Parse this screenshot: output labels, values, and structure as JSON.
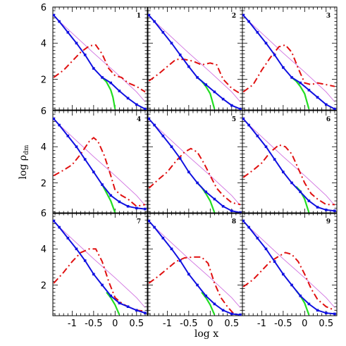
{
  "chart_data": {
    "type": "line",
    "xlabel": "log x",
    "ylabel_main": "log ρ",
    "ylabel_sub": "dm",
    "xlim": [
      -1.45,
      0.75
    ],
    "ylim": [
      0.3,
      6.0
    ],
    "x_ticks": [
      "-1",
      "-0.5",
      "0",
      "0.5"
    ],
    "x_tick_values": [
      -1,
      -0.5,
      0,
      0.5
    ],
    "y_ticks": [
      "6",
      "4",
      "2"
    ],
    "y_tick_values": [
      6,
      4,
      2
    ],
    "grid": false,
    "layout": "3x3",
    "colors": {
      "blue": "#1010e0",
      "green": "#22dd22",
      "red": "#e01010",
      "magenta": "#d070e0",
      "frame": "#000000"
    },
    "panels": [
      {
        "label": "1",
        "series": [
          {
            "style": "blue-dotted-solid",
            "x": [
              -1.43,
              -1.3,
              -1.1,
              -0.9,
              -0.7,
              -0.5,
              -0.3,
              -0.1,
              0.1,
              0.3,
              0.5,
              0.7
            ],
            "y": [
              5.55,
              5.2,
              4.6,
              4.0,
              3.35,
              2.6,
              2.1,
              1.8,
              1.35,
              0.95,
              0.6,
              0.35
            ]
          },
          {
            "style": "green-solid",
            "x": [
              -0.3,
              -0.2,
              -0.1,
              -0.05,
              0.0
            ],
            "y": [
              2.1,
              1.85,
              1.4,
              1.0,
              0.35
            ]
          },
          {
            "style": "red-dashed",
            "x": [
              -1.43,
              -1.2,
              -1.0,
              -0.8,
              -0.6,
              -0.45,
              -0.3,
              -0.15,
              0.0,
              0.15,
              0.3,
              0.5,
              0.7
            ],
            "y": [
              2.1,
              2.5,
              3.0,
              3.5,
              3.85,
              3.9,
              3.4,
              2.6,
              2.2,
              2.1,
              1.8,
              1.6,
              1.3
            ]
          },
          {
            "style": "magenta-thin",
            "x": [
              -1.43,
              -1.0,
              -0.5,
              0.0,
              0.5,
              0.7
            ],
            "y": [
              5.5,
              4.55,
              3.45,
              2.4,
              1.3,
              0.75
            ]
          }
        ]
      },
      {
        "label": "2",
        "series": [
          {
            "style": "blue-dotted-solid",
            "x": [
              -1.43,
              -1.3,
              -1.1,
              -0.9,
              -0.7,
              -0.5,
              -0.3,
              -0.1,
              0.1,
              0.3,
              0.5,
              0.7
            ],
            "y": [
              5.55,
              5.2,
              4.6,
              4.0,
              3.35,
              2.7,
              2.1,
              1.7,
              1.3,
              0.9,
              0.55,
              0.35
            ]
          },
          {
            "style": "green-solid",
            "x": [
              -0.3,
              -0.2,
              -0.1,
              0.0,
              0.1
            ],
            "y": [
              2.1,
              1.9,
              1.6,
              1.2,
              0.35
            ]
          },
          {
            "style": "red-dashed",
            "x": [
              -1.43,
              -1.2,
              -1.0,
              -0.8,
              -0.6,
              -0.4,
              -0.2,
              0.0,
              0.15,
              0.3,
              0.5,
              0.7
            ],
            "y": [
              1.9,
              2.3,
              2.7,
              3.1,
              3.1,
              3.0,
              2.8,
              2.9,
              2.8,
              2.0,
              1.5,
              1.2
            ]
          },
          {
            "style": "magenta-thin",
            "x": [
              -1.43,
              -1.0,
              -0.5,
              0.0,
              0.5,
              0.7
            ],
            "y": [
              5.5,
              4.55,
              3.45,
              2.4,
              1.3,
              0.75
            ]
          }
        ]
      },
      {
        "label": "3",
        "series": [
          {
            "style": "blue-dotted-solid",
            "x": [
              -1.43,
              -1.3,
              -1.1,
              -0.9,
              -0.7,
              -0.5,
              -0.3,
              -0.1,
              0.1,
              0.3,
              0.5,
              0.7
            ],
            "y": [
              5.55,
              5.2,
              4.6,
              4.0,
              3.35,
              2.65,
              2.1,
              1.8,
              1.4,
              1.0,
              0.6,
              0.35
            ]
          },
          {
            "style": "green-solid",
            "x": [
              -0.3,
              -0.2,
              -0.1,
              0.0,
              0.1
            ],
            "y": [
              2.1,
              1.9,
              1.6,
              1.2,
              0.35
            ]
          },
          {
            "style": "red-dashed",
            "x": [
              -1.43,
              -1.2,
              -1.0,
              -0.8,
              -0.6,
              -0.45,
              -0.3,
              -0.15,
              0.0,
              0.15,
              0.3,
              0.5,
              0.7
            ],
            "y": [
              1.3,
              1.7,
              2.5,
              3.2,
              3.8,
              3.9,
              3.5,
              2.6,
              1.8,
              1.7,
              1.8,
              1.7,
              1.6
            ]
          },
          {
            "style": "magenta-thin",
            "x": [
              -1.43,
              -1.0,
              -0.5,
              0.0,
              0.5,
              0.7
            ],
            "y": [
              5.5,
              4.55,
              3.45,
              2.4,
              1.3,
              0.75
            ]
          }
        ]
      },
      {
        "label": "4",
        "series": [
          {
            "style": "blue-dotted-solid",
            "x": [
              -1.43,
              -1.3,
              -1.1,
              -0.9,
              -0.7,
              -0.5,
              -0.3,
              -0.1,
              0.1,
              0.3,
              0.5,
              0.7
            ],
            "y": [
              5.55,
              5.2,
              4.6,
              4.0,
              3.3,
              2.6,
              1.9,
              1.3,
              0.95,
              0.7,
              0.6,
              0.55
            ]
          },
          {
            "style": "green-solid",
            "x": [
              -0.3,
              -0.2,
              -0.1,
              0.0
            ],
            "y": [
              1.9,
              1.45,
              1.0,
              0.35
            ]
          },
          {
            "style": "red-dashed",
            "x": [
              -1.43,
              -1.2,
              -1.0,
              -0.8,
              -0.6,
              -0.5,
              -0.4,
              -0.25,
              -0.1,
              0.0,
              0.15,
              0.3,
              0.5,
              0.7
            ],
            "y": [
              2.4,
              2.7,
              3.0,
              3.6,
              4.3,
              4.5,
              4.3,
              3.5,
              2.4,
              1.6,
              1.3,
              1.1,
              0.7,
              0.8
            ]
          },
          {
            "style": "magenta-thin",
            "x": [
              -1.43,
              -1.0,
              -0.5,
              0.0,
              0.5,
              0.7
            ],
            "y": [
              5.5,
              4.55,
              3.45,
              2.4,
              1.3,
              0.75
            ]
          }
        ]
      },
      {
        "label": "5",
        "series": [
          {
            "style": "blue-dotted-solid",
            "x": [
              -1.43,
              -1.3,
              -1.1,
              -0.9,
              -0.7,
              -0.5,
              -0.3,
              -0.1,
              0.1,
              0.3,
              0.5,
              0.7
            ],
            "y": [
              5.55,
              5.2,
              4.6,
              4.0,
              3.35,
              2.6,
              2.0,
              1.5,
              1.1,
              0.7,
              0.45,
              0.35
            ]
          },
          {
            "style": "green-solid",
            "x": [
              -0.3,
              -0.2,
              -0.1,
              0.0,
              0.1
            ],
            "y": [
              2.0,
              1.75,
              1.4,
              1.0,
              0.35
            ]
          },
          {
            "style": "red-dashed",
            "x": [
              -1.43,
              -1.2,
              -1.0,
              -0.8,
              -0.6,
              -0.45,
              -0.3,
              -0.15,
              0.0,
              0.15,
              0.3,
              0.5,
              0.7
            ],
            "y": [
              1.7,
              2.2,
              2.6,
              3.2,
              3.7,
              3.9,
              3.7,
              3.1,
              2.4,
              1.7,
              1.3,
              0.9,
              0.8
            ]
          },
          {
            "style": "magenta-thin",
            "x": [
              -1.43,
              -1.0,
              -0.5,
              0.0,
              0.5,
              0.7
            ],
            "y": [
              5.5,
              4.55,
              3.45,
              2.4,
              1.3,
              0.75
            ]
          }
        ]
      },
      {
        "label": "6",
        "series": [
          {
            "style": "blue-dotted-solid",
            "x": [
              -1.43,
              -1.3,
              -1.1,
              -0.9,
              -0.7,
              -0.5,
              -0.3,
              -0.1,
              0.1,
              0.3,
              0.5,
              0.7
            ],
            "y": [
              5.55,
              5.2,
              4.6,
              4.0,
              3.3,
              2.6,
              2.0,
              1.5,
              1.0,
              0.65,
              0.5,
              0.45
            ]
          },
          {
            "style": "green-solid",
            "x": [
              -0.2,
              -0.1,
              0.0,
              0.1
            ],
            "y": [
              1.8,
              1.55,
              1.1,
              0.35
            ]
          },
          {
            "style": "red-dashed",
            "x": [
              -1.43,
              -1.2,
              -1.0,
              -0.8,
              -0.6,
              -0.45,
              -0.3,
              -0.15,
              0.0,
              0.15,
              0.3,
              0.5,
              0.7
            ],
            "y": [
              2.3,
              2.7,
              3.1,
              3.7,
              4.1,
              4.0,
              3.6,
              2.8,
              2.0,
              1.4,
              1.1,
              0.8,
              0.8
            ]
          },
          {
            "style": "magenta-thin",
            "x": [
              -1.43,
              -1.0,
              -0.5,
              0.0,
              0.5,
              0.7
            ],
            "y": [
              5.5,
              4.55,
              3.45,
              2.4,
              1.3,
              0.75
            ]
          }
        ]
      },
      {
        "label": "7",
        "series": [
          {
            "style": "blue-dotted-solid",
            "x": [
              -1.43,
              -1.3,
              -1.1,
              -0.9,
              -0.7,
              -0.5,
              -0.3,
              -0.1,
              0.1,
              0.3,
              0.5,
              0.7
            ],
            "y": [
              5.55,
              5.2,
              4.6,
              4.0,
              3.35,
              2.6,
              2.0,
              1.4,
              1.0,
              0.8,
              0.6,
              0.45
            ]
          },
          {
            "style": "green-solid",
            "x": [
              -0.2,
              -0.1,
              0.0,
              0.1
            ],
            "y": [
              1.6,
              1.3,
              0.9,
              0.35
            ]
          },
          {
            "style": "red-dashed",
            "x": [
              -1.43,
              -1.2,
              -1.0,
              -0.8,
              -0.6,
              -0.45,
              -0.3,
              -0.15,
              0.0,
              0.15,
              0.3,
              0.5,
              0.7
            ],
            "y": [
              2.1,
              2.7,
              3.3,
              3.8,
              4.0,
              4.0,
              3.3,
              2.2,
              1.3,
              1.0,
              0.8,
              0.6,
              0.55
            ]
          },
          {
            "style": "magenta-thin",
            "x": [
              -1.43,
              -1.0,
              -0.5,
              0.0,
              0.5,
              0.7
            ],
            "y": [
              5.5,
              4.55,
              3.45,
              2.4,
              1.3,
              0.75
            ]
          }
        ]
      },
      {
        "label": "8",
        "series": [
          {
            "style": "blue-dotted-solid",
            "x": [
              -1.43,
              -1.3,
              -1.1,
              -0.9,
              -0.7,
              -0.5,
              -0.3,
              -0.1,
              0.1,
              0.3,
              0.5,
              0.7
            ],
            "y": [
              5.55,
              5.2,
              4.6,
              4.0,
              3.35,
              2.6,
              2.0,
              1.4,
              0.95,
              0.6,
              0.4,
              0.35
            ]
          },
          {
            "style": "green-solid",
            "x": [
              -0.2,
              -0.1,
              0.0,
              0.1
            ],
            "y": [
              1.6,
              1.3,
              0.9,
              0.35
            ]
          },
          {
            "style": "red-dashed",
            "x": [
              -1.43,
              -1.2,
              -1.0,
              -0.8,
              -0.6,
              -0.4,
              -0.2,
              -0.05,
              0.1,
              0.25,
              0.4,
              0.55,
              0.7
            ],
            "y": [
              2.1,
              2.5,
              2.9,
              3.3,
              3.5,
              3.55,
              3.55,
              3.2,
              2.1,
              1.3,
              0.8,
              0.4,
              0.35
            ]
          },
          {
            "style": "magenta-thin",
            "x": [
              -1.43,
              -1.0,
              -0.5,
              0.0,
              0.5,
              0.7
            ],
            "y": [
              5.5,
              4.55,
              3.45,
              2.4,
              1.3,
              0.75
            ]
          }
        ]
      },
      {
        "label": "9",
        "series": [
          {
            "style": "blue-dotted-solid",
            "x": [
              -1.43,
              -1.3,
              -1.1,
              -0.9,
              -0.7,
              -0.5,
              -0.3,
              -0.1,
              0.1,
              0.3,
              0.5,
              0.7
            ],
            "y": [
              5.55,
              5.2,
              4.6,
              4.0,
              3.3,
              2.6,
              2.0,
              1.4,
              0.95,
              0.6,
              0.45,
              0.4
            ]
          },
          {
            "style": "green-solid",
            "x": [
              -0.2,
              -0.1,
              0.0,
              0.1
            ],
            "y": [
              1.7,
              1.4,
              1.0,
              0.35
            ]
          },
          {
            "style": "red-dashed",
            "x": [
              -1.43,
              -1.2,
              -1.0,
              -0.8,
              -0.6,
              -0.45,
              -0.3,
              -0.15,
              0.0,
              0.15,
              0.3,
              0.5,
              0.7
            ],
            "y": [
              1.9,
              2.3,
              2.8,
              3.3,
              3.6,
              3.8,
              3.7,
              3.3,
              2.6,
              1.8,
              1.2,
              0.8,
              0.6
            ]
          },
          {
            "style": "magenta-thin",
            "x": [
              -1.43,
              -1.0,
              -0.5,
              0.0,
              0.5,
              0.7
            ],
            "y": [
              5.5,
              4.55,
              3.45,
              2.4,
              1.3,
              0.75
            ]
          }
        ]
      }
    ]
  }
}
